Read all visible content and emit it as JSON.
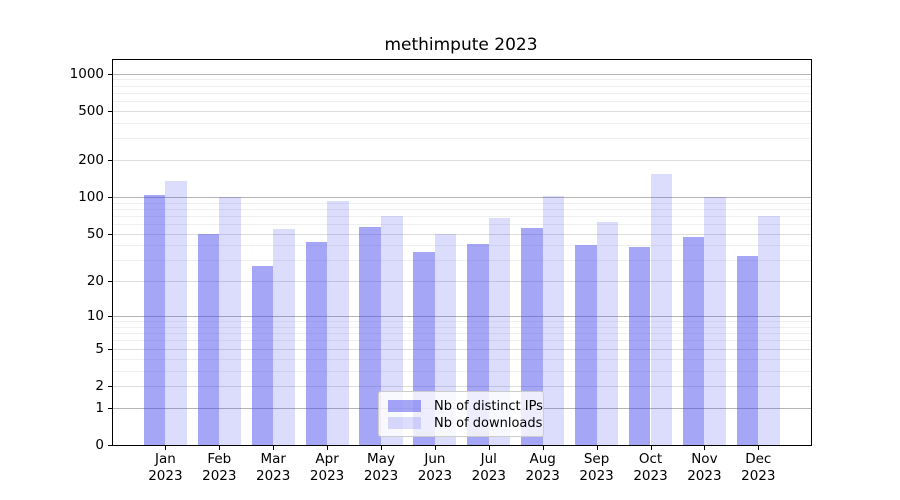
{
  "chart_data": {
    "type": "bar",
    "title": "methimpute 2023",
    "categories": [
      "Jan 2023",
      "Feb 2023",
      "Mar 2023",
      "Apr 2023",
      "May 2023",
      "Jun 2023",
      "Jul 2023",
      "Aug 2023",
      "Sep 2023",
      "Oct 2023",
      "Nov 2023",
      "Dec 2023"
    ],
    "series": [
      {
        "name": "Nb of distinct IPs",
        "color": "#a9a9f4",
        "fill": "rgba(68,68,238,0.48)",
        "values": [
          103,
          50,
          27,
          43,
          57,
          35,
          41,
          56,
          40,
          39,
          47,
          33
        ]
      },
      {
        "name": "Nb of downloads",
        "color": "#dcdcf8",
        "fill": "rgba(68,68,238,0.19)",
        "values": [
          134,
          100,
          55,
          92,
          70,
          50,
          67,
          101,
          63,
          153,
          100,
          70
        ]
      }
    ],
    "yticks": [
      0,
      1,
      2,
      5,
      10,
      20,
      50,
      100,
      200,
      500,
      1000
    ],
    "yscale": "log1p",
    "ylim": [
      0,
      1290
    ],
    "xlabel": "",
    "ylabel": "",
    "grid": true,
    "legend_position": "lower center"
  }
}
